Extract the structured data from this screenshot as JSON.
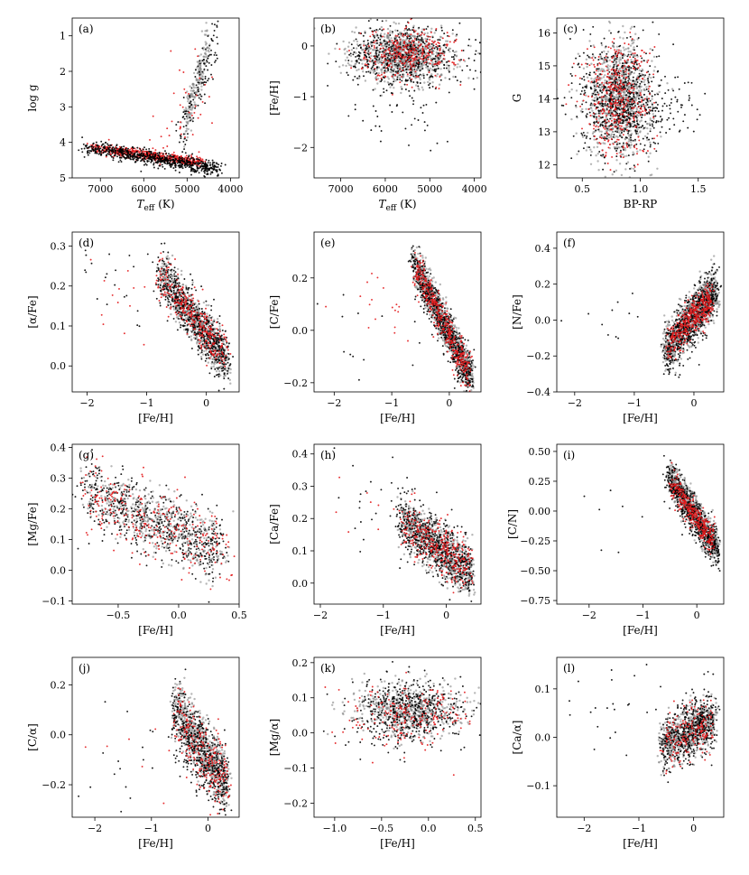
{
  "figure": {
    "description_series": [
      "black",
      "gray",
      "red"
    ],
    "colors": {
      "black": "#000000",
      "gray": "#7a7a7a",
      "red": "#e31a1c"
    }
  },
  "chart_data": [
    {
      "id": "a",
      "type": "scatter",
      "label": "(a)",
      "xlabel": "T",
      "xlabel_sub": "eff",
      "xlabel_unit": "(K)",
      "ylabel": "log g",
      "xlim": [
        7650,
        3800
      ],
      "ylim": [
        5.0,
        0.5
      ],
      "xticks": [
        7000,
        6000,
        5000,
        4000
      ],
      "yticks": [
        1,
        2,
        3,
        4,
        5
      ],
      "clusters": [
        {
          "kind": "band",
          "n": 520,
          "x0": 7200,
          "x1": 4700,
          "y0": 4.15,
          "y1": 4.55,
          "sy": 0.07,
          "color": "red"
        },
        {
          "kind": "band",
          "n": 700,
          "x0": 7300,
          "x1": 4300,
          "y0": 4.15,
          "y1": 4.75,
          "sy": 0.1,
          "color": "black"
        },
        {
          "kind": "band",
          "n": 180,
          "x0": 5100,
          "x1": 4500,
          "y0": 3.6,
          "y1": 1.2,
          "sy": 0.3,
          "color": "gray"
        },
        {
          "kind": "band",
          "n": 120,
          "x0": 5200,
          "x1": 4300,
          "y0": 3.9,
          "y1": 1.0,
          "sy": 0.35,
          "color": "black"
        },
        {
          "kind": "blob",
          "n": 40,
          "cx": 5000,
          "cy": 3.0,
          "sx": 300,
          "sy": 0.8,
          "color": "red"
        }
      ]
    },
    {
      "id": "b",
      "type": "scatter",
      "label": "(b)",
      "xlabel": "T",
      "xlabel_sub": "eff",
      "xlabel_unit": "(K)",
      "ylabel": "[Fe/H]",
      "xlim": [
        7600,
        3850
      ],
      "ylim": [
        -2.6,
        0.55
      ],
      "xticks": [
        7000,
        6000,
        5000,
        4000
      ],
      "yticks": [
        -2,
        -1,
        0
      ],
      "clusters": [
        {
          "kind": "blob",
          "n": 900,
          "cx": 5600,
          "cy": -0.2,
          "sx": 550,
          "sy": 0.25,
          "color": "gray"
        },
        {
          "kind": "blob",
          "n": 550,
          "cx": 5600,
          "cy": -0.2,
          "sx": 650,
          "sy": 0.28,
          "color": "black"
        },
        {
          "kind": "blob",
          "n": 320,
          "cx": 5500,
          "cy": -0.15,
          "sx": 500,
          "sy": 0.25,
          "color": "red"
        },
        {
          "kind": "blob",
          "n": 60,
          "cx": 5600,
          "cy": -1.1,
          "sx": 600,
          "sy": 0.5,
          "color": "black"
        }
      ]
    },
    {
      "id": "c",
      "type": "scatter",
      "label": "(c)",
      "xlabel": "BP-RP",
      "ylabel": "G",
      "xlim": [
        0.28,
        1.72
      ],
      "ylim": [
        11.6,
        16.45
      ],
      "xticks": [
        0.5,
        1.0,
        1.5
      ],
      "xtick_labels": [
        "0.5",
        "1.0",
        "1.5"
      ],
      "yticks": [
        12,
        13,
        14,
        15,
        16
      ],
      "clusters": [
        {
          "kind": "blob",
          "n": 900,
          "cx": 0.82,
          "cy": 14.0,
          "sx": 0.14,
          "sy": 0.85,
          "color": "gray"
        },
        {
          "kind": "blob",
          "n": 700,
          "cx": 0.82,
          "cy": 14.0,
          "sx": 0.17,
          "sy": 0.9,
          "color": "black"
        },
        {
          "kind": "blob",
          "n": 400,
          "cx": 0.8,
          "cy": 14.0,
          "sx": 0.15,
          "sy": 0.9,
          "color": "red"
        },
        {
          "kind": "blob",
          "n": 80,
          "cx": 1.15,
          "cy": 13.6,
          "sx": 0.2,
          "sy": 0.5,
          "color": "black"
        }
      ]
    },
    {
      "id": "d",
      "type": "scatter",
      "label": "(d)",
      "xlabel": "[Fe/H]",
      "ylabel": "[α/Fe]",
      "xlim": [
        -2.25,
        0.55
      ],
      "ylim": [
        -0.065,
        0.335
      ],
      "xticks": [
        -2,
        -1,
        0
      ],
      "yticks": [
        0.0,
        0.1,
        0.2,
        0.3
      ],
      "ytick_labels": [
        "0.0",
        "0.1",
        "0.2",
        "0.3"
      ],
      "clusters": [
        {
          "kind": "band",
          "n": 700,
          "x0": -0.75,
          "x1": 0.35,
          "y0": 0.23,
          "y1": 0.01,
          "sy": 0.028,
          "color": "gray"
        },
        {
          "kind": "band",
          "n": 600,
          "x0": -0.8,
          "x1": 0.35,
          "y0": 0.24,
          "y1": 0.01,
          "sy": 0.032,
          "color": "black"
        },
        {
          "kind": "band",
          "n": 300,
          "x0": -0.8,
          "x1": 0.35,
          "y0": 0.23,
          "y1": 0.02,
          "sy": 0.03,
          "color": "red"
        },
        {
          "kind": "blob",
          "n": 25,
          "cx": -1.4,
          "cy": 0.22,
          "sx": 0.45,
          "sy": 0.05,
          "color": "black"
        },
        {
          "kind": "blob",
          "n": 15,
          "cx": -1.4,
          "cy": 0.2,
          "sx": 0.45,
          "sy": 0.05,
          "color": "red"
        }
      ]
    },
    {
      "id": "e",
      "type": "scatter",
      "label": "(e)",
      "xlabel": "[Fe/H]",
      "ylabel": "[C/Fe]",
      "xlim": [
        -2.35,
        0.55
      ],
      "ylim": [
        -0.235,
        0.375
      ],
      "xticks": [
        -2,
        -1,
        0
      ],
      "yticks": [
        -0.2,
        0.0,
        0.2
      ],
      "ytick_labels": [
        "−0.2",
        "0.0",
        "0.2"
      ],
      "clusters": [
        {
          "kind": "band",
          "n": 900,
          "x0": -0.6,
          "x1": 0.38,
          "y0": 0.26,
          "y1": -0.18,
          "sy": 0.035,
          "color": "gray"
        },
        {
          "kind": "band",
          "n": 650,
          "x0": -0.65,
          "x1": 0.38,
          "y0": 0.26,
          "y1": -0.19,
          "sy": 0.04,
          "color": "black"
        },
        {
          "kind": "band",
          "n": 400,
          "x0": -0.6,
          "x1": 0.35,
          "y0": 0.25,
          "y1": -0.17,
          "sy": 0.035,
          "color": "red"
        },
        {
          "kind": "blob",
          "n": 20,
          "cx": -1.3,
          "cy": 0.1,
          "sx": 0.55,
          "sy": 0.1,
          "color": "red"
        },
        {
          "kind": "blob",
          "n": 15,
          "cx": -1.3,
          "cy": 0.0,
          "sx": 0.55,
          "sy": 0.1,
          "color": "black"
        }
      ]
    },
    {
      "id": "f",
      "type": "scatter",
      "label": "(f)",
      "xlabel": "[Fe/H]",
      "ylabel": "[N/Fe]",
      "xlim": [
        -2.3,
        0.5
      ],
      "ylim": [
        -0.4,
        0.49
      ],
      "xticks": [
        -2,
        -1,
        0
      ],
      "yticks": [
        -0.4,
        -0.2,
        0.0,
        0.2,
        0.4
      ],
      "ytick_labels": [
        "−0.4",
        "−0.2",
        "0.0",
        "0.2",
        "0.4"
      ],
      "clusters": [
        {
          "kind": "band",
          "n": 850,
          "x0": -0.5,
          "x1": 0.38,
          "y0": -0.17,
          "y1": 0.17,
          "sy": 0.065,
          "color": "gray"
        },
        {
          "kind": "band",
          "n": 650,
          "x0": -0.5,
          "x1": 0.38,
          "y0": -0.18,
          "y1": 0.17,
          "sy": 0.075,
          "color": "black"
        },
        {
          "kind": "band",
          "n": 380,
          "x0": -0.45,
          "x1": 0.3,
          "y0": -0.14,
          "y1": 0.12,
          "sy": 0.05,
          "color": "red"
        },
        {
          "kind": "blob",
          "n": 12,
          "cx": -1.2,
          "cy": 0.05,
          "sx": 0.4,
          "sy": 0.1,
          "color": "black"
        }
      ]
    },
    {
      "id": "g",
      "type": "scatter",
      "label": "(g)",
      "xlabel": "[Fe/H]",
      "ylabel": "[Mg/Fe]",
      "xlim": [
        -0.88,
        0.5
      ],
      "ylim": [
        -0.11,
        0.41
      ],
      "xticks": [
        -0.5,
        0.0,
        0.5
      ],
      "xtick_labels": [
        "−0.5",
        "0.0",
        "0.5"
      ],
      "yticks": [
        -0.1,
        0.0,
        0.1,
        0.2,
        0.3,
        0.4
      ],
      "ytick_labels": [
        "−0.1",
        "0.0",
        "0.1",
        "0.2",
        "0.3",
        "0.4"
      ],
      "clusters": [
        {
          "kind": "band",
          "n": 600,
          "x0": -0.8,
          "x1": 0.35,
          "y0": 0.27,
          "y1": 0.06,
          "sy": 0.055,
          "color": "black"
        },
        {
          "kind": "band",
          "n": 450,
          "x0": -0.75,
          "x1": 0.35,
          "y0": 0.26,
          "y1": 0.06,
          "sy": 0.05,
          "color": "gray"
        },
        {
          "kind": "band",
          "n": 280,
          "x0": -0.8,
          "x1": 0.4,
          "y0": 0.25,
          "y1": 0.06,
          "sy": 0.06,
          "color": "red"
        }
      ]
    },
    {
      "id": "h",
      "type": "scatter",
      "label": "(h)",
      "xlabel": "[Fe/H]",
      "ylabel": "[Ca/Fe]",
      "xlim": [
        -2.1,
        0.55
      ],
      "ylim": [
        -0.065,
        0.43
      ],
      "xticks": [
        -2,
        -1,
        0
      ],
      "yticks": [
        0.0,
        0.1,
        0.2,
        0.3,
        0.4
      ],
      "ytick_labels": [
        "0.0",
        "0.1",
        "0.2",
        "0.3",
        "0.4"
      ],
      "clusters": [
        {
          "kind": "band",
          "n": 750,
          "x0": -0.7,
          "x1": 0.4,
          "y0": 0.2,
          "y1": 0.03,
          "sy": 0.04,
          "color": "gray"
        },
        {
          "kind": "band",
          "n": 600,
          "x0": -0.75,
          "x1": 0.4,
          "y0": 0.2,
          "y1": 0.03,
          "sy": 0.045,
          "color": "black"
        },
        {
          "kind": "band",
          "n": 320,
          "x0": -0.7,
          "x1": 0.4,
          "y0": 0.19,
          "y1": 0.04,
          "sy": 0.04,
          "color": "red"
        },
        {
          "kind": "blob",
          "n": 25,
          "cx": -1.2,
          "cy": 0.24,
          "sx": 0.45,
          "sy": 0.07,
          "color": "black"
        },
        {
          "kind": "blob",
          "n": 10,
          "cx": -1.3,
          "cy": 0.22,
          "sx": 0.45,
          "sy": 0.07,
          "color": "red"
        }
      ]
    },
    {
      "id": "i",
      "type": "scatter",
      "label": "(i)",
      "xlabel": "[Fe/H]",
      "ylabel": "[C/N]",
      "xlim": [
        -2.6,
        0.5
      ],
      "ylim": [
        -0.78,
        0.56
      ],
      "xticks": [
        -2,
        -1,
        0
      ],
      "yticks": [
        -0.75,
        -0.5,
        -0.25,
        0.0,
        0.25,
        0.5
      ],
      "ytick_labels": [
        "−0.75",
        "−0.50",
        "−0.25",
        "0.00",
        "0.25",
        "0.50"
      ],
      "clusters": [
        {
          "kind": "band",
          "n": 750,
          "x0": -0.5,
          "x1": 0.38,
          "y0": 0.3,
          "y1": -0.32,
          "sy": 0.07,
          "color": "gray"
        },
        {
          "kind": "band",
          "n": 600,
          "x0": -0.55,
          "x1": 0.38,
          "y0": 0.3,
          "y1": -0.33,
          "sy": 0.08,
          "color": "black"
        },
        {
          "kind": "band",
          "n": 320,
          "x0": -0.5,
          "x1": 0.3,
          "y0": 0.24,
          "y1": -0.25,
          "sy": 0.06,
          "color": "red"
        },
        {
          "kind": "blob",
          "n": 12,
          "cx": -1.3,
          "cy": -0.05,
          "sx": 0.45,
          "sy": 0.2,
          "color": "black"
        }
      ]
    },
    {
      "id": "j",
      "type": "scatter",
      "label": "(j)",
      "xlabel": "[Fe/H]",
      "ylabel": "[C/α]",
      "xlim": [
        -2.4,
        0.55
      ],
      "ylim": [
        -0.33,
        0.31
      ],
      "xticks": [
        -2,
        -1,
        0
      ],
      "yticks": [
        -0.2,
        0.0,
        0.2
      ],
      "ytick_labels": [
        "−0.2",
        "0.0",
        "0.2"
      ],
      "clusters": [
        {
          "kind": "band",
          "n": 650,
          "x0": -0.6,
          "x1": 0.35,
          "y0": 0.12,
          "y1": -0.2,
          "sy": 0.06,
          "color": "gray"
        },
        {
          "kind": "band",
          "n": 550,
          "x0": -0.65,
          "x1": 0.35,
          "y0": 0.1,
          "y1": -0.21,
          "sy": 0.07,
          "color": "black"
        },
        {
          "kind": "band",
          "n": 230,
          "x0": -0.6,
          "x1": 0.35,
          "y0": 0.08,
          "y1": -0.2,
          "sy": 0.07,
          "color": "red"
        },
        {
          "kind": "blob",
          "n": 18,
          "cx": -1.4,
          "cy": -0.15,
          "sx": 0.5,
          "sy": 0.1,
          "color": "black"
        },
        {
          "kind": "blob",
          "n": 8,
          "cx": -1.3,
          "cy": -0.1,
          "sx": 0.5,
          "sy": 0.1,
          "color": "red"
        }
      ]
    },
    {
      "id": "k",
      "type": "scatter",
      "label": "(k)",
      "xlabel": "[Fe/H]",
      "ylabel": "[Mg/α]",
      "xlim": [
        -1.22,
        0.56
      ],
      "ylim": [
        -0.24,
        0.215
      ],
      "xticks": [
        -1.0,
        -0.5,
        0.0,
        0.5
      ],
      "xtick_labels": [
        "−1.0",
        "−0.5",
        "0.0",
        "0.5"
      ],
      "yticks": [
        -0.2,
        -0.1,
        0.0,
        0.1,
        0.2
      ],
      "ytick_labels": [
        "−0.2",
        "−0.1",
        "0.0",
        "0.1",
        "0.2"
      ],
      "clusters": [
        {
          "kind": "blob",
          "n": 600,
          "cx": -0.2,
          "cy": 0.065,
          "sx": 0.28,
          "sy": 0.038,
          "color": "gray"
        },
        {
          "kind": "blob",
          "n": 500,
          "cx": -0.2,
          "cy": 0.06,
          "sx": 0.3,
          "sy": 0.045,
          "color": "black"
        },
        {
          "kind": "blob",
          "n": 200,
          "cx": -0.2,
          "cy": 0.055,
          "sx": 0.3,
          "sy": 0.045,
          "color": "red"
        }
      ]
    },
    {
      "id": "l",
      "type": "scatter",
      "label": "(l)",
      "xlabel": "[Fe/H]",
      "ylabel": "[Ca/α]",
      "xlim": [
        -2.5,
        0.55
      ],
      "ylim": [
        -0.165,
        0.165
      ],
      "xticks": [
        -2,
        -1,
        0
      ],
      "yticks": [
        -0.1,
        0.0,
        0.1
      ],
      "ytick_labels": [
        "−0.1",
        "0.0",
        "0.1"
      ],
      "clusters": [
        {
          "kind": "band",
          "n": 650,
          "x0": -0.6,
          "x1": 0.38,
          "y0": -0.02,
          "y1": 0.04,
          "sy": 0.025,
          "color": "gray"
        },
        {
          "kind": "band",
          "n": 500,
          "x0": -0.6,
          "x1": 0.38,
          "y0": -0.02,
          "y1": 0.04,
          "sy": 0.03,
          "color": "black"
        },
        {
          "kind": "band",
          "n": 180,
          "x0": -0.55,
          "x1": 0.35,
          "y0": -0.02,
          "y1": 0.03,
          "sy": 0.03,
          "color": "red"
        },
        {
          "kind": "blob",
          "n": 25,
          "cx": -1.4,
          "cy": 0.06,
          "sx": 0.55,
          "sy": 0.05,
          "color": "black"
        }
      ]
    }
  ]
}
